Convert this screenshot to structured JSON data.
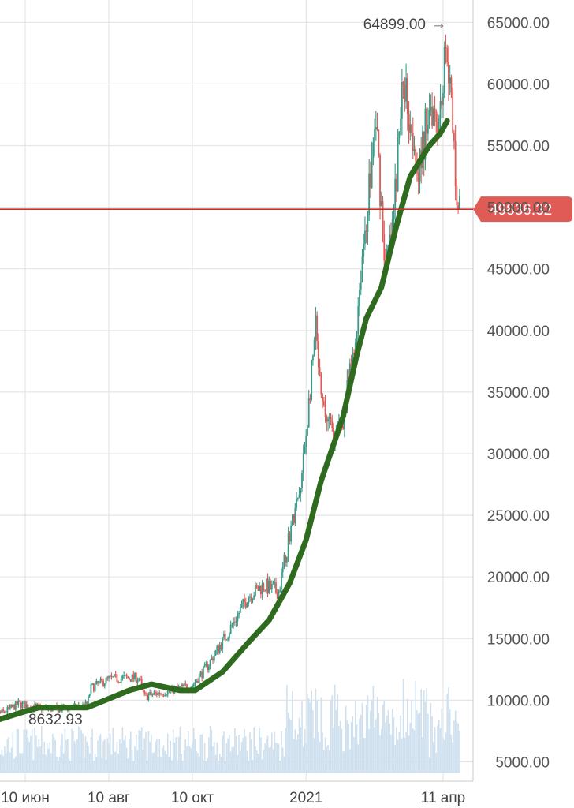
{
  "chart_data": {
    "type": "candlestick",
    "y_tick_labels": [
      "5000.00",
      "10000.00",
      "15000.00",
      "20000.00",
      "25000.00",
      "30000.00",
      "35000.00",
      "40000.00",
      "45000.00",
      "50000.00",
      "55000.00",
      "60000.00",
      "65000.00"
    ],
    "y_ticks": [
      5000,
      10000,
      15000,
      20000,
      25000,
      30000,
      35000,
      40000,
      45000,
      50000,
      55000,
      60000,
      65000
    ],
    "ylim": [
      4000,
      66700
    ],
    "x_tick_labels": [
      "10 июн",
      "10 авг",
      "10 окт",
      "2021",
      "11 апр"
    ],
    "x_ticks": [
      "2020-06-10",
      "2020-08-10",
      "2020-10-10",
      "2021-01-01",
      "2021-04-11"
    ],
    "x_range": [
      "2020-05-12",
      "2021-04-23"
    ],
    "grid": true,
    "current_price": 49836.32,
    "current_price_label": "49836.32",
    "high_annotation": {
      "date": "2021-04-14",
      "value": 64899.0,
      "label": "64899.00",
      "arrow": "→"
    },
    "low_annotation": {
      "date": "2020-06-25",
      "value": 8632.93,
      "label": "8632.93"
    },
    "close_series_approx": [
      {
        "date": "2020-05-12",
        "value": 8700
      },
      {
        "date": "2020-05-25",
        "value": 9000
      },
      {
        "date": "2020-06-05",
        "value": 9700
      },
      {
        "date": "2020-06-25",
        "value": 9300
      },
      {
        "date": "2020-07-10",
        "value": 9300
      },
      {
        "date": "2020-07-25",
        "value": 9600
      },
      {
        "date": "2020-07-28",
        "value": 11000
      },
      {
        "date": "2020-08-10",
        "value": 11700
      },
      {
        "date": "2020-08-20",
        "value": 11800
      },
      {
        "date": "2020-09-01",
        "value": 11800
      },
      {
        "date": "2020-09-05",
        "value": 10300
      },
      {
        "date": "2020-09-20",
        "value": 10700
      },
      {
        "date": "2020-10-10",
        "value": 11200
      },
      {
        "date": "2020-10-21",
        "value": 12800
      },
      {
        "date": "2020-11-05",
        "value": 15500
      },
      {
        "date": "2020-11-20",
        "value": 18500
      },
      {
        "date": "2020-12-01",
        "value": 19300
      },
      {
        "date": "2020-12-12",
        "value": 18800
      },
      {
        "date": "2020-12-20",
        "value": 23600
      },
      {
        "date": "2020-12-28",
        "value": 27000
      },
      {
        "date": "2021-01-08",
        "value": 40000
      },
      {
        "date": "2021-01-12",
        "value": 34000
      },
      {
        "date": "2021-01-22",
        "value": 31000
      },
      {
        "date": "2021-01-28",
        "value": 33000
      },
      {
        "date": "2021-02-05",
        "value": 38000
      },
      {
        "date": "2021-02-10",
        "value": 45000
      },
      {
        "date": "2021-02-21",
        "value": 57000
      },
      {
        "date": "2021-02-28",
        "value": 45000
      },
      {
        "date": "2021-03-05",
        "value": 48000
      },
      {
        "date": "2021-03-13",
        "value": 60500
      },
      {
        "date": "2021-03-25",
        "value": 53000
      },
      {
        "date": "2021-04-01",
        "value": 58800
      },
      {
        "date": "2021-04-08",
        "value": 57500
      },
      {
        "date": "2021-04-14",
        "value": 63500
      },
      {
        "date": "2021-04-18",
        "value": 56000
      },
      {
        "date": "2021-04-22",
        "value": 49836
      }
    ],
    "moving_average_approx": [
      {
        "date": "2020-05-12",
        "value": 8100
      },
      {
        "date": "2020-06-10",
        "value": 9100
      },
      {
        "date": "2020-06-20",
        "value": 9400
      },
      {
        "date": "2020-07-25",
        "value": 9400
      },
      {
        "date": "2020-08-25",
        "value": 10800
      },
      {
        "date": "2020-09-10",
        "value": 11300
      },
      {
        "date": "2020-10-01",
        "value": 10800
      },
      {
        "date": "2020-10-12",
        "value": 10800
      },
      {
        "date": "2020-11-01",
        "value": 12300
      },
      {
        "date": "2020-11-20",
        "value": 14700
      },
      {
        "date": "2020-12-05",
        "value": 16500
      },
      {
        "date": "2020-12-20",
        "value": 19500
      },
      {
        "date": "2021-01-01",
        "value": 23000
      },
      {
        "date": "2021-01-12",
        "value": 27800
      },
      {
        "date": "2021-01-28",
        "value": 33000
      },
      {
        "date": "2021-02-07",
        "value": 38000
      },
      {
        "date": "2021-02-14",
        "value": 41000
      },
      {
        "date": "2021-02-25",
        "value": 43500
      },
      {
        "date": "2021-03-08",
        "value": 48500
      },
      {
        "date": "2021-03-18",
        "value": 52500
      },
      {
        "date": "2021-04-01",
        "value": 55000
      },
      {
        "date": "2021-04-09",
        "value": 56000
      },
      {
        "date": "2021-04-14",
        "value": 57000
      }
    ],
    "colors": {
      "up": "#3a9a87",
      "down": "#de5a56",
      "moving_average": "#2f6b1f",
      "price_line": "#c9302c",
      "price_label_bg": "#e05b55",
      "grid": "#e6e6e6",
      "volume": "#cfe0ef"
    }
  }
}
